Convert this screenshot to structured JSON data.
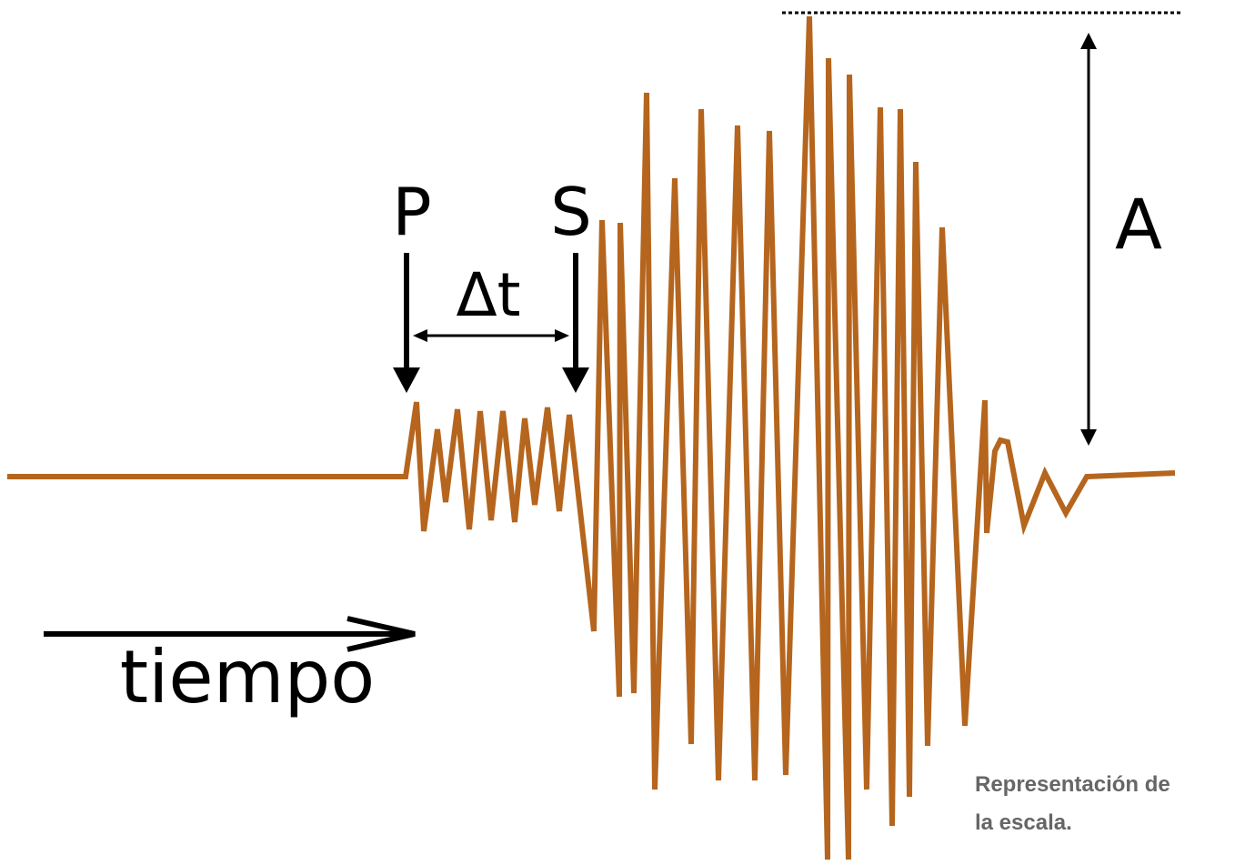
{
  "labels": {
    "p_wave": "P",
    "s_wave": "S",
    "delta_t": "Δt",
    "amplitude": "A",
    "time_axis": "tiempo"
  },
  "caption": {
    "line1": "Representación de",
    "line2": "la escala."
  },
  "colors": {
    "seismogram": "#b5651d",
    "annotation": "#000000",
    "caption_text": "#666666"
  }
}
